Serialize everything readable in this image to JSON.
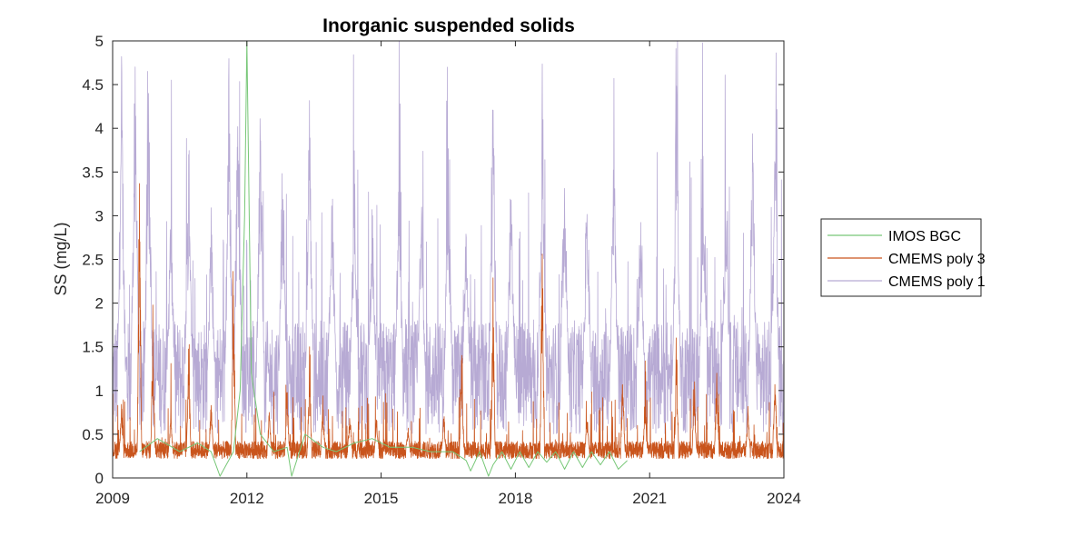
{
  "chart_data": {
    "type": "line",
    "title": "Inorganic suspended solids",
    "xlabel": "",
    "ylabel": "SS (mg/L)",
    "xlim": [
      2009,
      2024
    ],
    "ylim": [
      0,
      5
    ],
    "xticks": [
      "2009",
      "2012",
      "2015",
      "2018",
      "2021",
      "2024"
    ],
    "yticks": [
      "0",
      "0.5",
      "1",
      "1.5",
      "2",
      "2.5",
      "3",
      "3.5",
      "4",
      "4.5",
      "5"
    ],
    "grid": false,
    "legend_position": "outside-right",
    "series": [
      {
        "name": "IMOS BGC",
        "color": "#77c777",
        "x": [
          2009.6,
          2010.0,
          2010.5,
          2010.9,
          2011.2,
          2011.4,
          2011.7,
          2011.85,
          2011.95,
          2012.0,
          2012.1,
          2012.3,
          2012.6,
          2012.9,
          2013.0,
          2013.3,
          2013.7,
          2014.0,
          2014.4,
          2014.8,
          2015.2,
          2015.7,
          2016.1,
          2016.6,
          2016.9,
          2017.0,
          2017.2,
          2017.4,
          2017.5,
          2017.7,
          2017.9,
          2018.1,
          2018.3,
          2018.5,
          2018.7,
          2018.9,
          2019.1,
          2019.3,
          2019.5,
          2019.7,
          2019.9,
          2020.1,
          2020.3,
          2020.5
        ],
        "values": [
          0.3,
          0.45,
          0.3,
          0.4,
          0.3,
          0.02,
          0.3,
          1.0,
          3.0,
          5.0,
          1.2,
          0.5,
          0.3,
          0.35,
          0.02,
          0.5,
          0.35,
          0.3,
          0.4,
          0.45,
          0.35,
          0.35,
          0.3,
          0.3,
          0.2,
          0.08,
          0.3,
          0.02,
          0.15,
          0.3,
          0.1,
          0.3,
          0.12,
          0.3,
          0.18,
          0.3,
          0.1,
          0.3,
          0.12,
          0.3,
          0.15,
          0.3,
          0.1,
          0.2
        ]
      },
      {
        "name": "CMEMS poly 3",
        "color": "#c9541c",
        "baseline": 0.32,
        "spikes": [
          [
            2009.2,
            0.9
          ],
          [
            2009.6,
            3.45
          ],
          [
            2009.9,
            1.9
          ],
          [
            2010.3,
            0.8
          ],
          [
            2010.7,
            1.6
          ],
          [
            2011.2,
            0.9
          ],
          [
            2011.7,
            2.4
          ],
          [
            2012.5,
            0.8
          ],
          [
            2012.9,
            1.1
          ],
          [
            2013.4,
            1.4
          ],
          [
            2013.7,
            0.9
          ],
          [
            2014.3,
            0.8
          ],
          [
            2014.9,
            0.7
          ],
          [
            2015.6,
            0.6
          ],
          [
            2016.4,
            0.8
          ],
          [
            2016.8,
            1.5
          ],
          [
            2017.5,
            2.3
          ],
          [
            2018.6,
            3.15
          ],
          [
            2019.6,
            0.8
          ],
          [
            2020.4,
            1.3
          ],
          [
            2020.9,
            0.9
          ],
          [
            2021.6,
            1.6
          ],
          [
            2022.0,
            1.2
          ],
          [
            2022.5,
            1.3
          ],
          [
            2023.2,
            0.8
          ],
          [
            2023.8,
            1.4
          ]
        ]
      },
      {
        "name": "CMEMS poly 1",
        "color": "#b7aad4",
        "baseline": 1.15,
        "spikes": [
          [
            2009.2,
            5.0
          ],
          [
            2009.5,
            5.0
          ],
          [
            2009.8,
            5.0
          ],
          [
            2010.3,
            3.3
          ],
          [
            2010.7,
            4.0
          ],
          [
            2011.2,
            3.2
          ],
          [
            2011.6,
            5.0
          ],
          [
            2011.8,
            5.0
          ],
          [
            2012.3,
            4.6
          ],
          [
            2012.8,
            4.0
          ],
          [
            2013.4,
            4.5
          ],
          [
            2013.9,
            3.9
          ],
          [
            2014.4,
            3.8
          ],
          [
            2014.8,
            3.2
          ],
          [
            2015.4,
            3.7
          ],
          [
            2015.9,
            3.5
          ],
          [
            2016.5,
            3.9
          ],
          [
            2016.9,
            3.0
          ],
          [
            2017.5,
            4.6
          ],
          [
            2017.9,
            3.6
          ],
          [
            2018.6,
            5.0
          ],
          [
            2019.1,
            4.2
          ],
          [
            2019.6,
            3.8
          ],
          [
            2020.2,
            4.3
          ],
          [
            2020.8,
            3.5
          ],
          [
            2021.6,
            5.0
          ],
          [
            2022.2,
            4.2
          ],
          [
            2022.7,
            3.8
          ],
          [
            2023.3,
            4.1
          ],
          [
            2023.8,
            4.5
          ]
        ]
      }
    ]
  }
}
